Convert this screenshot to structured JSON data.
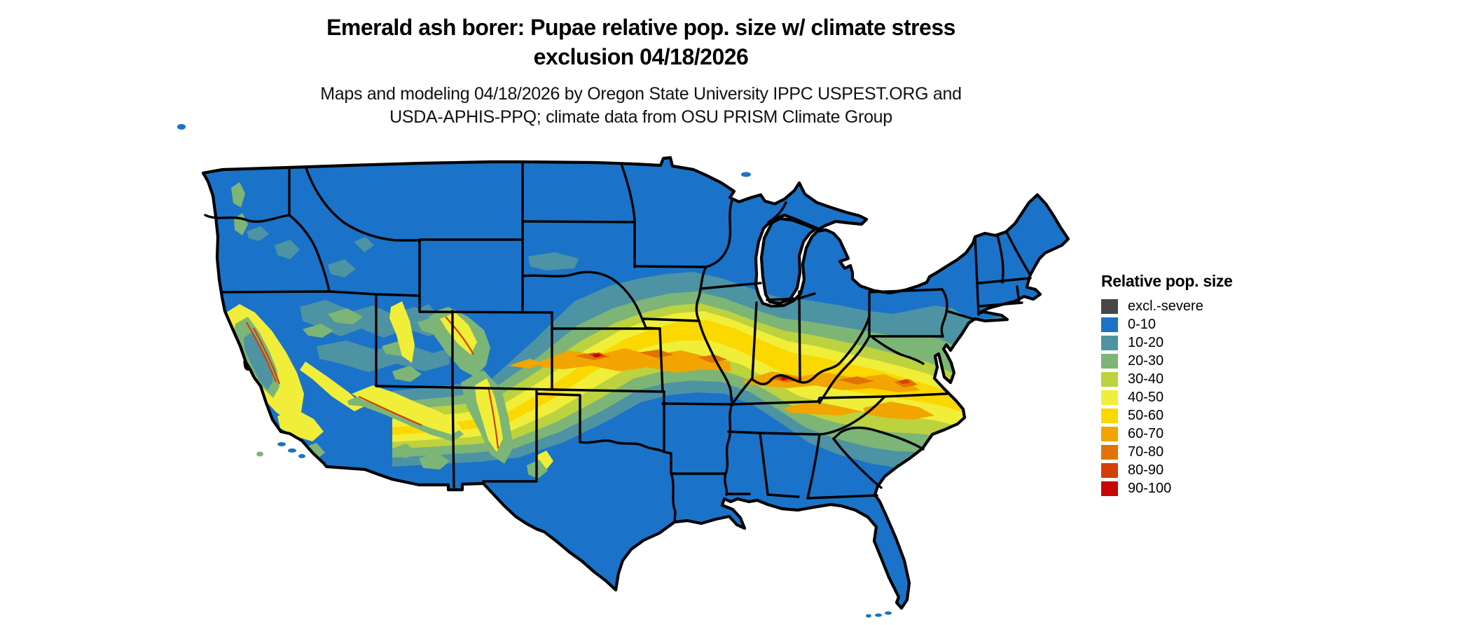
{
  "title": {
    "line1": "Emerald ash borer: Pupae relative pop. size w/ climate stress",
    "line2": "exclusion 04/18/2026"
  },
  "subtitle": {
    "line1": "Maps and modeling 04/18/2026 by Oregon State University IPPC USPEST.ORG and",
    "line2": "USDA-APHIS-PPQ; climate data from OSU PRISM Climate Group"
  },
  "legend": {
    "title": "Relative pop. size",
    "items": [
      {
        "label": "excl.-severe",
        "color": "#474747"
      },
      {
        "label": "0-10",
        "color": "#1a73c8"
      },
      {
        "label": "10-20",
        "color": "#4e93a3"
      },
      {
        "label": "20-30",
        "color": "#7db577"
      },
      {
        "label": "30-40",
        "color": "#bcd23f"
      },
      {
        "label": "40-50",
        "color": "#f0ee39"
      },
      {
        "label": "50-60",
        "color": "#fbd800"
      },
      {
        "label": "60-70",
        "color": "#f2a500"
      },
      {
        "label": "70-80",
        "color": "#e17304"
      },
      {
        "label": "80-90",
        "color": "#d43f05"
      },
      {
        "label": "90-100",
        "color": "#c70505"
      }
    ]
  }
}
